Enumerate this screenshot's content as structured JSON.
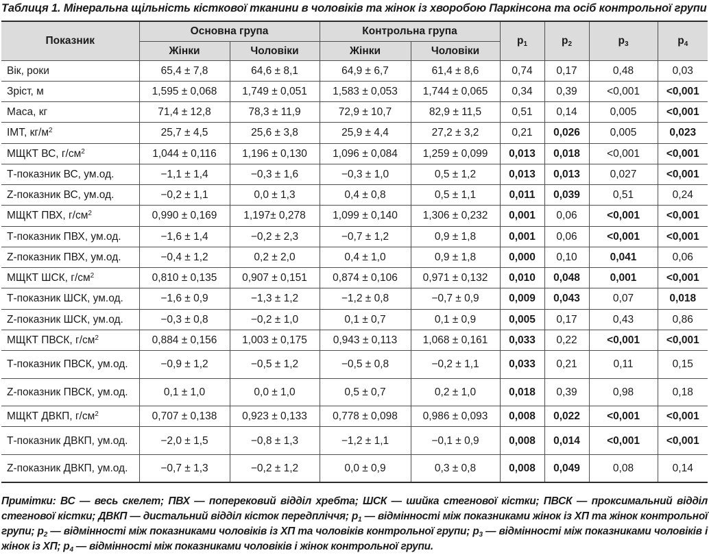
{
  "caption": "Таблиця 1. Мінеральна щільність кісткової тканини в чоловіків та жінок із хворобою Паркінсона та осіб контрольної групи",
  "header": {
    "indicator": "Показник",
    "main_group": "Основна група",
    "control_group": "Контрольна група",
    "women": "Жінки",
    "men": "Чоловіки",
    "p_letter": "p",
    "p_subs": [
      "1",
      "2",
      "3",
      "4"
    ]
  },
  "rows": [
    {
      "label": "Вік, роки",
      "unit_sup": "",
      "cells": [
        "65,4 ± 7,8",
        "64,6 ± 8,1",
        "64,9 ± 6,7",
        "61,4 ± 8,6",
        "0,74",
        "0,17",
        "0,48",
        "0,03"
      ],
      "bold": [
        false,
        false,
        false,
        false
      ]
    },
    {
      "label": "Зріст, м",
      "unit_sup": "",
      "cells": [
        "1,595 ± 0,068",
        "1,749 ± 0,051",
        "1,583 ± 0,053",
        "1,744 ± 0,065",
        "0,34",
        "0,39",
        "<0,001",
        "<0,001"
      ],
      "bold": [
        false,
        false,
        false,
        true
      ]
    },
    {
      "label": "Маса, кг",
      "unit_sup": "",
      "cells": [
        "71,4 ± 12,8",
        "78,3 ± 11,9",
        "72,9 ± 10,7",
        "82,9 ± 11,5",
        "0,51",
        "0,14",
        "0,005",
        "<0,001"
      ],
      "bold": [
        false,
        false,
        false,
        true
      ]
    },
    {
      "label": "ІМТ, кг/м",
      "unit_sup": "2",
      "cells": [
        "25,7 ± 4,5",
        "25,6 ± 3,8",
        "25,9 ± 4,4",
        "27,2 ± 3,2",
        "0,21",
        "0,026",
        "0,005",
        "0,023"
      ],
      "bold": [
        false,
        true,
        false,
        true
      ]
    },
    {
      "label": "МЩКТ ВС, г/см",
      "unit_sup": "2",
      "cells": [
        "1,044 ± 0,116",
        "1,196 ± 0,130",
        "1,096 ± 0,084",
        "1,259 ± 0,099",
        "0,013",
        "0,018",
        "<0,001",
        "<0,001"
      ],
      "bold": [
        true,
        true,
        false,
        true
      ]
    },
    {
      "label": "Т-показник ВС, ум.од.",
      "unit_sup": "",
      "cells": [
        "−1,1 ± 1,4",
        "−0,3 ± 1,6",
        "−0,3 ± 1,0",
        "0,5 ± 1,2",
        "0,013",
        "0,013",
        "0,027",
        "<0,001"
      ],
      "bold": [
        true,
        true,
        false,
        true
      ]
    },
    {
      "label": "Z-показник ВС, ум.од.",
      "unit_sup": "",
      "cells": [
        "−0,2 ± 1,1",
        "0,0 ± 1,3",
        "0,4 ± 0,8",
        "0,5 ± 1,1",
        "0,011",
        "0,039",
        "0,51",
        "0,24"
      ],
      "bold": [
        true,
        true,
        false,
        false
      ]
    },
    {
      "label": "МЩКТ ПВХ, г/см",
      "unit_sup": "2",
      "cells": [
        "0,990 ± 0,169",
        "1,197± 0,278",
        "1,099 ± 0,140",
        "1,306 ± 0,232",
        "0,001",
        "0,06",
        "<0,001",
        "<0,001"
      ],
      "bold": [
        true,
        false,
        true,
        true
      ]
    },
    {
      "label": "Т-показник ПВХ, ум.од.",
      "unit_sup": "",
      "cells": [
        "−1,6 ± 1,4",
        "−0,2 ± 2,3",
        "−0,7 ± 1,2",
        "0,9 ± 1,8",
        "0,001",
        "0,06",
        "<0,001",
        "<0,001"
      ],
      "bold": [
        true,
        false,
        true,
        true
      ]
    },
    {
      "label": "Z-показник ПВХ, ум.од.",
      "unit_sup": "",
      "cells": [
        "−0,4 ± 1,2",
        "0,2 ± 2,0",
        "0,4 ± 1,0",
        "0,9 ± 1,8",
        "0,000",
        "0,10",
        "0,041",
        "0,06"
      ],
      "bold": [
        true,
        false,
        true,
        false
      ]
    },
    {
      "label": "МЩКТ ШСК, г/см",
      "unit_sup": "2",
      "cells": [
        "0,810 ± 0,135",
        "0,907 ± 0,151",
        "0,874 ± 0,106",
        "0,971 ± 0,132",
        "0,010",
        "0,048",
        "0,001",
        "<0,001"
      ],
      "bold": [
        true,
        true,
        true,
        true
      ]
    },
    {
      "label": "Т-показник ШСК, ум.од.",
      "unit_sup": "",
      "cells": [
        "−1,6 ± 0,9",
        "−1,3 ± 1,2",
        "−1,2 ± 0,8",
        "−0,7 ± 0,9",
        "0,009",
        "0,043",
        "0,07",
        "0,018"
      ],
      "bold": [
        true,
        true,
        false,
        true
      ]
    },
    {
      "label": "Z-показник ШСК, ум.од.",
      "unit_sup": "",
      "cells": [
        "−0,3 ± 0,8",
        "−0,2 ± 1,0",
        "0,1 ± 0,7",
        "0,1 ± 0,9",
        "0,005",
        "0,17",
        "0,43",
        "0,86"
      ],
      "bold": [
        true,
        false,
        false,
        false
      ]
    },
    {
      "label": "МЩКТ ПВСК, г/см",
      "unit_sup": "2",
      "cells": [
        "0,884 ± 0,156",
        "1,003 ± 0,175",
        "0,943 ± 0,113",
        "1,068 ± 0,161",
        "0,033",
        "0,22",
        "<0,001",
        "<0,001"
      ],
      "bold": [
        true,
        false,
        true,
        true
      ]
    },
    {
      "label": "Т-показник ПВСК, ум.од.",
      "unit_sup": "",
      "cells": [
        "−0,9 ± 1,2",
        "−0,5 ± 1,2",
        "−0,5 ± 0,8",
        "−0,2 ± 1,1",
        "0,033",
        "0,21",
        "0,11",
        "0,15"
      ],
      "bold": [
        true,
        false,
        false,
        false
      ]
    },
    {
      "label": "Z-показник ПВСК, ум.од.",
      "unit_sup": "",
      "cells": [
        "0,1 ± 1,0",
        "0,0 ± 1,0",
        "0,5 ± 0,7",
        "0,2 ± 1,0",
        "0,018",
        "0,39",
        "0,98",
        "0,18"
      ],
      "bold": [
        true,
        false,
        false,
        false
      ]
    },
    {
      "label": "МЩКТ ДВКП, г/см",
      "unit_sup": "2",
      "cells": [
        "0,707 ± 0,138",
        "0,923 ± 0,133",
        "0,778 ± 0,098",
        "0,986 ± 0,093",
        "0,008",
        "0,022",
        "<0,001",
        "<0,001"
      ],
      "bold": [
        true,
        true,
        true,
        true
      ]
    },
    {
      "label": "Т-показник ДВКП, ум.од.",
      "unit_sup": "",
      "cells": [
        "−2,0 ± 1,5",
        "−0,8 ± 1,3",
        "−1,2 ± 1,1",
        "−0,1 ± 0,9",
        "0,008",
        "0,014",
        "<0,001",
        "<0,001"
      ],
      "bold": [
        true,
        true,
        true,
        true
      ]
    },
    {
      "label": "Z-показник ДВКП, ум.од.",
      "unit_sup": "",
      "cells": [
        "−0,7 ± 1,3",
        "−0,2 ± 1,2",
        "0,0 ± 0,9",
        "0,3 ± 0,8",
        "0,008",
        "0,049",
        "0,08",
        "0,14"
      ],
      "bold": [
        true,
        true,
        false,
        false
      ]
    }
  ],
  "notes": {
    "part1": "Примітки: ВС — весь скелет; ПВХ — поперековий відділ хребта; ШСК — шийка стегнової кістки; ПВСК — проксимальний відділ стегнової кістки; ДВКП — дистальний відділ кісток передпліччя; ",
    "p": "p",
    "sub1": "1",
    "part2": " — відмінності між показниками жінок із ХП та жінок контрольної групи; ",
    "sub2": "2",
    "part3": " — відмінності між показниками чоловіків із ХП та чоловіків контрольної групи; ",
    "sub3": "3",
    "part4": " — відмінності між показниками чоловіків і жінок із ХП; ",
    "sub4": "4",
    "part5": " — відмінності між показниками чоловіків і жінок контрольної групи."
  }
}
